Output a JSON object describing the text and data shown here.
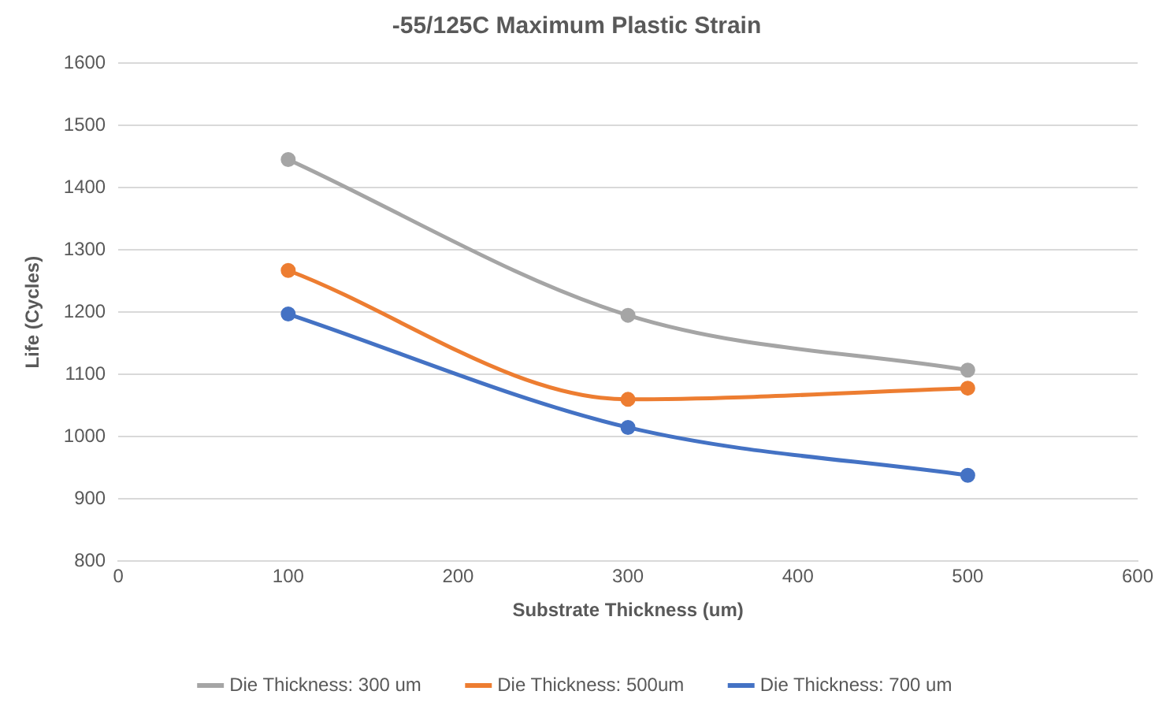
{
  "chart_data": {
    "type": "line",
    "title": "-55/125C Maximum Plastic Strain",
    "xlabel": "Substrate Thickness (um)",
    "ylabel": "Life (Cycles)",
    "x": [
      100,
      300,
      500
    ],
    "series": [
      {
        "name": "Die Thickness: 300 um",
        "color": "#a5a5a5",
        "values": [
          1445,
          1195,
          1107
        ]
      },
      {
        "name": "Die Thickness: 500um",
        "color": "#ed7d31",
        "values": [
          1267,
          1060,
          1078
        ]
      },
      {
        "name": "Die Thickness: 700 um",
        "color": "#4472c4",
        "values": [
          1197,
          1015,
          938
        ]
      }
    ],
    "xlim": [
      0,
      600
    ],
    "xticks": [
      0,
      100,
      200,
      300,
      400,
      500,
      600
    ],
    "ylim": [
      800,
      1600
    ],
    "yticks": [
      800,
      900,
      1000,
      1100,
      1200,
      1300,
      1400,
      1500,
      1600
    ],
    "grid": "y",
    "legend": "bottom",
    "marker": "circle",
    "line_style": "solid"
  }
}
